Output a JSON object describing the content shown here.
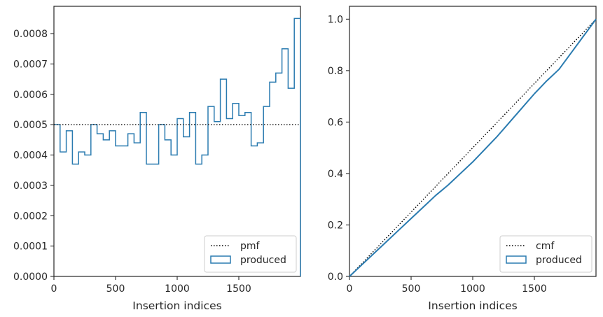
{
  "chart_data": [
    {
      "type": "step",
      "xlabel": "Insertion indices",
      "ylabel": "",
      "xlim": [
        0,
        2000
      ],
      "ylim": [
        0,
        0.00089
      ],
      "xticks": [
        0,
        500,
        1000,
        1500
      ],
      "xtick_labels": [
        "0",
        "500",
        "1000",
        "1500"
      ],
      "yticks": [
        0,
        0.0001,
        0.0002,
        0.0003,
        0.0004,
        0.0005,
        0.0006,
        0.0007,
        0.0008
      ],
      "ytick_labels": [
        "0.0000",
        "0.0001",
        "0.0002",
        "0.0003",
        "0.0004",
        "0.0005",
        "0.0006",
        "0.0007",
        "0.0008"
      ],
      "legend_position": "lower right",
      "reference": {
        "name": "pmf",
        "value": 0.0005,
        "style": "dotted",
        "color": "#000000"
      },
      "histogram": {
        "name": "produced",
        "color": "#2a7bb0",
        "bin_edges": [
          0,
          50,
          100,
          150,
          200,
          250,
          300,
          350,
          400,
          450,
          500,
          550,
          600,
          650,
          700,
          750,
          800,
          850,
          900,
          950,
          1000,
          1050,
          1100,
          1150,
          1200,
          1250,
          1300,
          1350,
          1400,
          1450,
          1500,
          1550,
          1600,
          1650,
          1700,
          1750,
          1800,
          1850,
          1900,
          1950,
          2000
        ],
        "values": [
          0.0005,
          0.00041,
          0.00048,
          0.00037,
          0.00041,
          0.0004,
          0.0005,
          0.00047,
          0.00045,
          0.00048,
          0.00043,
          0.00043,
          0.00047,
          0.00044,
          0.00054,
          0.00037,
          0.00037,
          0.0005,
          0.00045,
          0.0004,
          0.00052,
          0.00046,
          0.00054,
          0.00037,
          0.0004,
          0.00056,
          0.00051,
          0.00065,
          0.00052,
          0.00057,
          0.00053,
          0.00054,
          0.00043,
          0.00044,
          0.00056,
          0.00064,
          0.00067,
          0.00075,
          0.00062,
          0.00085
        ]
      }
    },
    {
      "type": "step",
      "xlabel": "Insertion indices",
      "ylabel": "",
      "xlim": [
        0,
        2000
      ],
      "ylim": [
        0,
        1.05
      ],
      "xticks": [
        0,
        500,
        1000,
        1500
      ],
      "xtick_labels": [
        "0",
        "500",
        "1000",
        "1500"
      ],
      "yticks": [
        0,
        0.2,
        0.4,
        0.6,
        0.8,
        1.0
      ],
      "ytick_labels": [
        "0.0",
        "0.2",
        "0.4",
        "0.6",
        "0.8",
        "1.0"
      ],
      "legend_position": "lower right",
      "reference": {
        "name": "cmf",
        "x": [
          0,
          2000
        ],
        "y": [
          0,
          1.0
        ],
        "style": "dotted",
        "color": "#000000"
      },
      "cumulative": {
        "name": "produced",
        "color": "#2a7bb0",
        "x": [
          0,
          100,
          200,
          300,
          400,
          500,
          600,
          700,
          800,
          900,
          1000,
          1100,
          1200,
          1300,
          1400,
          1500,
          1600,
          1700,
          1800,
          1900,
          2000
        ],
        "y": [
          0,
          0.045,
          0.09,
          0.135,
          0.18,
          0.225,
          0.27,
          0.315,
          0.355,
          0.4,
          0.445,
          0.495,
          0.545,
          0.6,
          0.655,
          0.71,
          0.76,
          0.805,
          0.87,
          0.935,
          1.0
        ]
      }
    }
  ]
}
